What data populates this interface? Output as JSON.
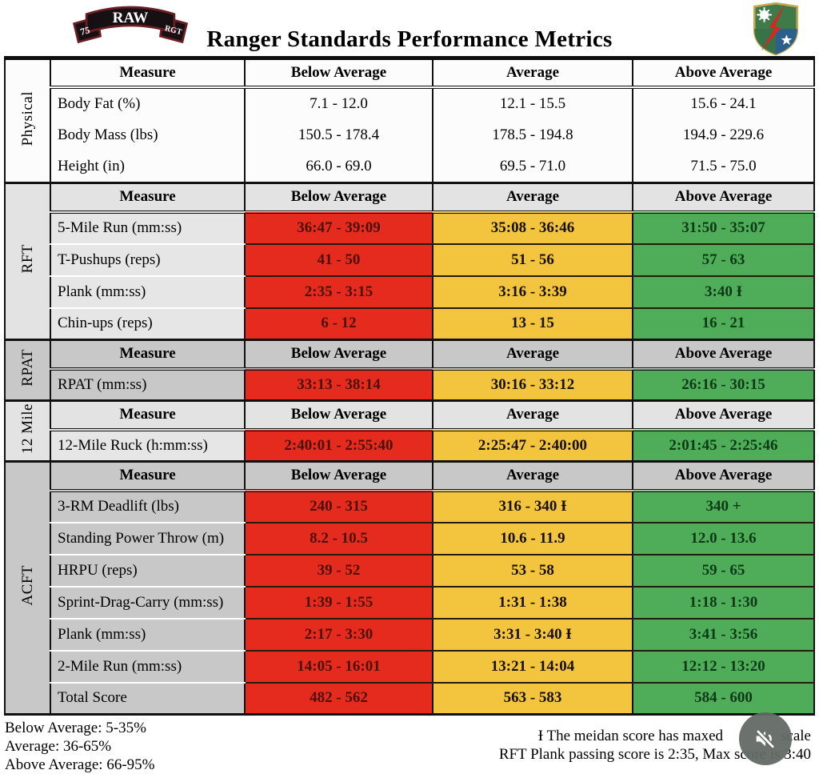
{
  "page": {
    "title": "Ranger Standards Performance Metrics"
  },
  "logos": {
    "left": {
      "tab_left": "75",
      "banner": "RAW",
      "tab_right": "RGT"
    },
    "right": {
      "name": "75th-ranger-regiment-crest"
    }
  },
  "table": {
    "headers": [
      "Measure",
      "Below Average",
      "Average",
      "Above Average"
    ],
    "sections": [
      {
        "label": "Physical",
        "tone": "white",
        "colored": false,
        "rows": [
          {
            "measure": "Body Fat (%)",
            "below": "7.1 - 12.0",
            "average": "12.1 - 15.5",
            "above": "15.6 - 24.1"
          },
          {
            "measure": "Body Mass (lbs)",
            "below": "150.5 - 178.4",
            "average": "178.5 - 194.8",
            "above": "194.9 - 229.6"
          },
          {
            "measure": "Height (in)",
            "below": "66.0 - 69.0",
            "average": "69.5 - 71.0",
            "above": "71.5 - 75.0"
          }
        ]
      },
      {
        "label": "RFT",
        "tone": "light",
        "colored": true,
        "rows": [
          {
            "measure": "5-Mile Run (mm:ss)",
            "below": "36:47 - 39:09",
            "average": "35:08 - 36:46",
            "above": "31:50 - 35:07"
          },
          {
            "measure": "T-Pushups (reps)",
            "below": "41 - 50",
            "average": "51 - 56",
            "above": "57 - 63"
          },
          {
            "measure": "Plank (mm:ss)",
            "below": "2:35 - 3:15",
            "average": "3:16 - 3:39",
            "above": "3:40 Ɨ"
          },
          {
            "measure": "Chin-ups (reps)",
            "below": "6 - 12",
            "average": "13 - 15",
            "above": "16 - 21"
          }
        ]
      },
      {
        "label": "RPAT",
        "tone": "gray",
        "colored": true,
        "rows": [
          {
            "measure": "RPAT (mm:ss)",
            "below": "33:13 - 38:14",
            "average": "30:16 - 33:12",
            "above": "26:16 - 30:15"
          }
        ]
      },
      {
        "label": "12 Mile",
        "tone": "light",
        "colored": true,
        "rows": [
          {
            "measure": "12-Mile Ruck (h:mm:ss)",
            "below": "2:40:01 - 2:55:40",
            "average": "2:25:47 - 2:40:00",
            "above": "2:01:45 - 2:25:46"
          }
        ]
      },
      {
        "label": "ACFT",
        "tone": "gray",
        "colored": true,
        "rows": [
          {
            "measure": "3-RM Deadlift (lbs)",
            "below": "240 - 315",
            "average": "316 - 340 Ɨ",
            "above": "340 +"
          },
          {
            "measure": "Standing Power Throw (m)",
            "below": "8.2 - 10.5",
            "average": "10.6 - 11.9",
            "above": "12.0 - 13.6"
          },
          {
            "measure": "HRPU (reps)",
            "below": "39 - 52",
            "average": "53 - 58",
            "above": "59 - 65"
          },
          {
            "measure": "Sprint-Drag-Carry (mm:ss)",
            "below": "1:39 - 1:55",
            "average": "1:31 - 1:38",
            "above": "1:18 - 1:30"
          },
          {
            "measure": "Plank (mm:ss)",
            "below": "2:17 - 3:30",
            "average": "3:31 - 3:40 Ɨ",
            "above": "3:41 - 3:56"
          },
          {
            "measure": "2-Mile Run (mm:ss)",
            "below": "14:05 - 16:01",
            "average": "13:21 - 14:04",
            "above": "12:12 - 13:20"
          },
          {
            "measure": "Total Score",
            "below": "482 - 562",
            "average": "563 - 583",
            "above": "584 - 600"
          }
        ]
      }
    ]
  },
  "legend": {
    "lines": [
      "Below Average: 5-35%",
      "Average: 36-65%",
      "Above Average: 66-95%"
    ]
  },
  "footnotes": {
    "line1_before": "Ɨ The meidan score has maxed",
    "line1_after": "scale",
    "line2": "RFT Plank passing score is 2:35, Max score is 3:40"
  },
  "colors": {
    "below_average": "#e52a1e",
    "average": "#f3c43e",
    "above_average": "#4fad59",
    "section_gray": "#c8c8c8",
    "section_light": "#e6e6e6"
  },
  "icons": {
    "mute": "speaker-muted-icon"
  }
}
